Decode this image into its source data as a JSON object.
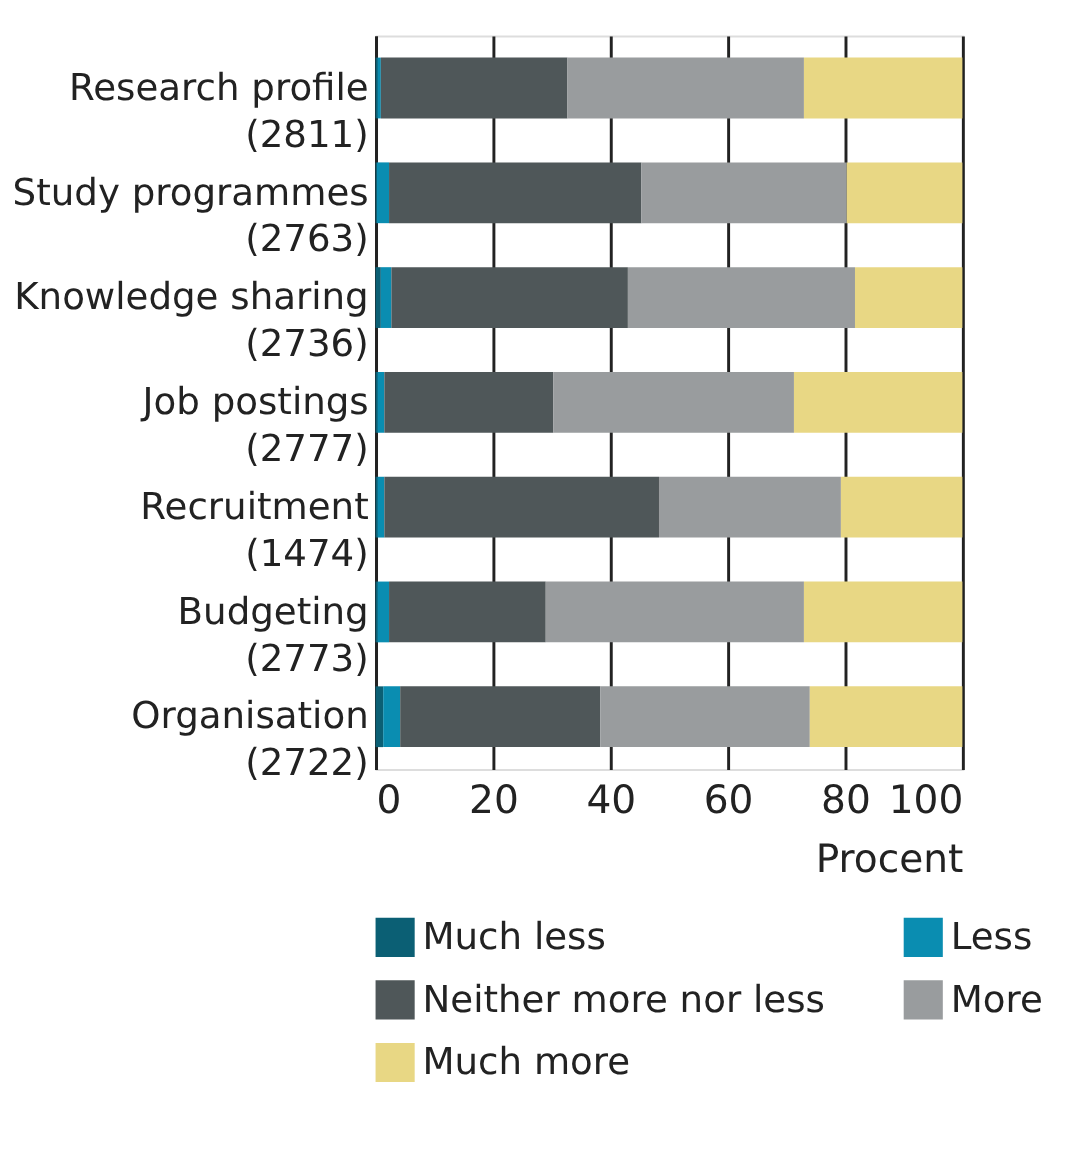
{
  "chart_data": {
    "type": "bar",
    "orientation": "horizontal",
    "stacked": true,
    "categories": [
      "Research profile\n(2811)",
      "Study programmes\n(2763)",
      "Knowledge sharing\n(2736)",
      "Job postings\n(2777)",
      "Recruitment\n(1474)",
      "Budgeting\n(2773)",
      "Organisation\n(2722)"
    ],
    "series": [
      {
        "name": "Much less",
        "color": "#0b5f74",
        "values": [
          0.3,
          0.2,
          0.9,
          0.3,
          0.3,
          0.3,
          1.3
        ]
      },
      {
        "name": "Less",
        "color": "#0a8db1",
        "values": [
          0.6,
          2.1,
          1.8,
          1.2,
          1.2,
          2.0,
          2.9
        ]
      },
      {
        "name": "Neither more nor less",
        "color": "#4f5759",
        "values": [
          31.8,
          43.0,
          40.3,
          28.8,
          46.8,
          26.7,
          34.1
        ]
      },
      {
        "name": "More",
        "color": "#999c9e",
        "values": [
          40.3,
          35.0,
          38.7,
          41.0,
          31.0,
          44.0,
          35.7
        ]
      },
      {
        "name": "Much more",
        "color": "#e8d784",
        "values": [
          27.0,
          19.7,
          18.3,
          28.7,
          20.7,
          27.0,
          26.0
        ]
      }
    ],
    "xlabel": "Procent",
    "xlim": [
      0,
      100
    ],
    "xticks": [
      0,
      20,
      40,
      60,
      80,
      100
    ],
    "grid": "x",
    "legend": "bottom"
  }
}
